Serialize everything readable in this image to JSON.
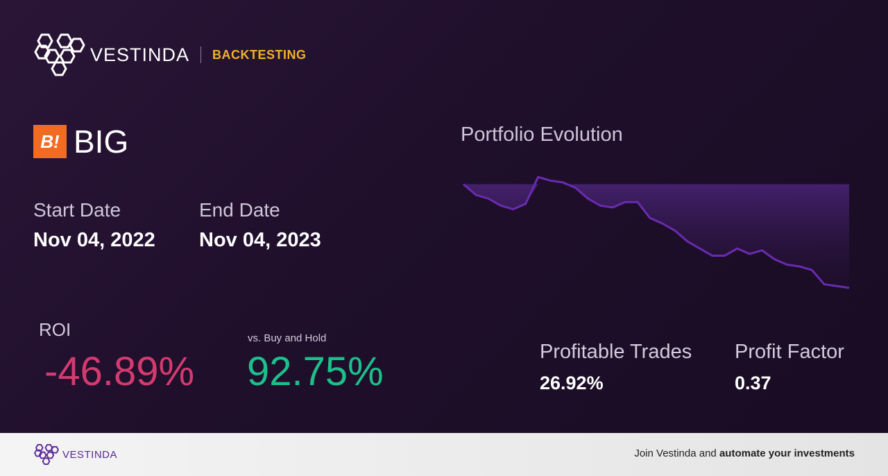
{
  "header": {
    "brand": "VESTINDA",
    "section": "BACKTESTING"
  },
  "ticker": {
    "logo_text": "B!",
    "symbol": "BIG"
  },
  "dates": {
    "start_label": "Start Date",
    "start_value": "Nov 04, 2022",
    "end_label": "End Date",
    "end_value": "Nov 04, 2023"
  },
  "roi": {
    "label": "ROI",
    "value": "-46.89%",
    "bh_label": "vs. Buy and Hold",
    "bh_value": "92.75%"
  },
  "stats": {
    "profitable_label": "Profitable Trades",
    "profitable_value": "26.92%",
    "factor_label": "Profit Factor",
    "factor_value": "0.37"
  },
  "chart_title": "Portfolio Evolution",
  "chart_data": {
    "type": "area",
    "title": "Portfolio Evolution",
    "baseline": 100,
    "values": [
      100,
      94,
      92,
      88,
      86,
      89,
      104,
      102,
      101,
      98,
      92,
      88,
      87,
      90,
      90,
      81,
      78,
      74,
      68,
      64,
      60,
      60,
      64,
      61,
      63,
      58,
      55,
      54,
      52,
      44,
      43,
      42
    ]
  },
  "footer": {
    "brand": "VESTINDA",
    "cta_prefix": "Join Vestinda and ",
    "cta_bold": "automate your investments"
  },
  "colors": {
    "accent": "#f0b323",
    "roi_negative": "#d33b6f",
    "roi_positive": "#1cc08a",
    "chart_line": "#6a2bb0",
    "ticker_logo": "#f36b21"
  }
}
